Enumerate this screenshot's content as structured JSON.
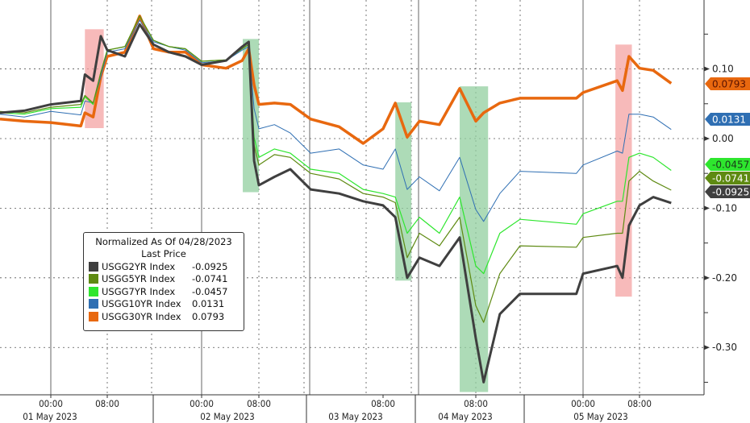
{
  "chart_data": {
    "type": "line",
    "title": "",
    "xlabel": "",
    "ylabel": "",
    "ylim": [
      -0.368,
      0.199
    ],
    "y_ticks": [
      "0.10",
      "0.00",
      "-0.10",
      "-0.20",
      "-0.30"
    ],
    "y_tick_values": [
      0.1,
      0.0,
      -0.1,
      -0.2,
      -0.3
    ],
    "grid": true,
    "y_axis_side": "right",
    "x_tick_labels": [
      {
        "t": "05-01 00:00",
        "label": "00:00"
      },
      {
        "t": "05-01 08:00",
        "label": "08:00"
      },
      {
        "t": "05-02 00:00",
        "label": "00:00"
      },
      {
        "t": "05-02 08:00",
        "label": "08:00"
      },
      {
        "t": "05-03 08:00",
        "label": "08:00"
      },
      {
        "t": "05-04 08:00",
        "label": "08:00"
      },
      {
        "t": "05-05 00:00",
        "label": "00:00"
      },
      {
        "t": "05-05 08:00",
        "label": "08:00"
      }
    ],
    "date_labels": [
      "01 May 2023",
      "02 May 2023",
      "03 May 2023",
      "04 May 2023",
      "05 May 2023"
    ],
    "legend": {
      "title": "Normalized As Of 04/28/2023",
      "subtitle": "Last Price",
      "placement": "bottom-left"
    },
    "x": [
      "04-30 17:00",
      "04-30 20:20",
      "05-01 00:00",
      "05-01 04:15",
      "05-01 04:50",
      "05-01 06:00",
      "05-01 07:05",
      "05-01 08:00",
      "05-01 11:00",
      "05-01 13:30",
      "05-01 15:50",
      "05-01 18:30",
      "05-01 21:15",
      "05-02 00:00",
      "05-02 03:25",
      "05-02 05:40",
      "05-02 06:35",
      "05-02 07:20",
      "05-02 08:00",
      "05-02 11:00",
      "05-02 14:05",
      "05-02 18:00",
      "05-02 23:30",
      "05-03 04:10",
      "05-03 08:00",
      "05-03 11:10",
      "05-03 14:15",
      "05-03 17:25",
      "05-03 22:35",
      "05-04 03:50",
      "05-04 08:00",
      "05-04 09:10",
      "05-04 11:35",
      "05-04 14:35",
      "05-04 23:00",
      "05-05 00:00",
      "05-05 04:50",
      "05-05 05:35",
      "05-05 06:30",
      "05-05 08:00",
      "05-05 09:50",
      "05-05 12:15"
    ],
    "series": [
      {
        "name": "USGG2YR Index",
        "last": "-0.0925",
        "color": "#3f3f3f",
        "tag_text": "#ffffff",
        "values": [
          0.037,
          0.04,
          0.049,
          0.054,
          0.092,
          0.083,
          0.147,
          0.127,
          0.118,
          0.164,
          0.135,
          0.124,
          0.118,
          0.106,
          0.112,
          0.132,
          0.139,
          -0.032,
          -0.067,
          -0.055,
          -0.044,
          -0.073,
          -0.079,
          -0.09,
          -0.096,
          -0.113,
          -0.2,
          -0.171,
          -0.183,
          -0.142,
          -0.287,
          -0.35,
          -0.252,
          -0.223,
          -0.223,
          -0.194,
          -0.183,
          -0.2,
          -0.125,
          -0.096,
          -0.084,
          -0.0925
        ]
      },
      {
        "name": "USGG5YR Index",
        "last": "-0.0741",
        "color": "#5e8a12",
        "tag_text": "#ffffff",
        "values": [
          0.039,
          0.037,
          0.045,
          0.049,
          0.062,
          0.051,
          0.095,
          0.127,
          0.132,
          0.176,
          0.141,
          0.132,
          0.129,
          0.111,
          0.113,
          0.129,
          0.135,
          -0.009,
          -0.038,
          -0.023,
          -0.027,
          -0.05,
          -0.058,
          -0.079,
          -0.084,
          -0.092,
          -0.171,
          -0.136,
          -0.154,
          -0.113,
          -0.24,
          -0.264,
          -0.194,
          -0.154,
          -0.156,
          -0.142,
          -0.136,
          -0.136,
          -0.061,
          -0.047,
          -0.061,
          -0.0741
        ]
      },
      {
        "name": "USGG7YR Index",
        "last": "-0.0457",
        "color": "#2ee62e",
        "tag_text": "#1a3a1a",
        "values": [
          0.037,
          0.035,
          0.043,
          0.045,
          0.06,
          0.049,
          0.095,
          0.127,
          0.132,
          0.176,
          0.141,
          0.132,
          0.129,
          0.111,
          0.113,
          0.129,
          0.135,
          0.002,
          -0.027,
          -0.015,
          -0.021,
          -0.044,
          -0.05,
          -0.073,
          -0.079,
          -0.084,
          -0.136,
          -0.113,
          -0.136,
          -0.084,
          -0.183,
          -0.194,
          -0.136,
          -0.116,
          -0.123,
          -0.108,
          -0.09,
          -0.09,
          -0.027,
          -0.021,
          -0.027,
          -0.0457
        ]
      },
      {
        "name": "USGG10YR Index",
        "last": "0.0131",
        "color": "#2f6fb3",
        "tag_text": "#ffffff",
        "values": [
          0.035,
          0.031,
          0.039,
          0.034,
          0.054,
          0.051,
          0.089,
          0.124,
          0.129,
          0.17,
          0.139,
          0.132,
          0.127,
          0.109,
          0.112,
          0.127,
          0.132,
          0.043,
          0.014,
          0.02,
          0.008,
          -0.021,
          -0.015,
          -0.038,
          -0.044,
          -0.015,
          -0.073,
          -0.055,
          -0.075,
          -0.027,
          -0.102,
          -0.119,
          -0.079,
          -0.047,
          -0.05,
          -0.038,
          -0.018,
          -0.021,
          0.035,
          0.035,
          0.031,
          0.0131
        ]
      },
      {
        "name": "USGG30YR Index",
        "last": "0.0793",
        "color": "#e8680f",
        "tag_text": "#5a1200",
        "values": [
          0.028,
          0.025,
          0.023,
          0.018,
          0.037,
          0.031,
          0.089,
          0.118,
          0.124,
          0.176,
          0.129,
          0.124,
          0.124,
          0.106,
          0.101,
          0.112,
          0.129,
          0.077,
          0.049,
          0.051,
          0.049,
          0.028,
          0.017,
          -0.007,
          0.014,
          0.051,
          0.002,
          0.025,
          0.02,
          0.072,
          0.025,
          0.037,
          0.051,
          0.058,
          0.058,
          0.066,
          0.083,
          0.069,
          0.118,
          0.101,
          0.098,
          0.0793
        ]
      }
    ],
    "highlights": [
      {
        "color": "#f4a3a3",
        "t0": "05-01 04:50",
        "t1": "05-01 07:30",
        "v0": 0.157,
        "v1": 0.015
      },
      {
        "color": "#92cf9f",
        "t0": "05-02 05:45",
        "t1": "05-02 08:00",
        "v0": 0.143,
        "v1": -0.077
      },
      {
        "color": "#92cf9f",
        "t0": "05-03 11:10",
        "t1": "05-03 15:20",
        "v0": 0.052,
        "v1": -0.204
      },
      {
        "color": "#92cf9f",
        "t0": "05-04 03:50",
        "t1": "05-04 09:50",
        "v0": 0.075,
        "v1": -0.364
      },
      {
        "color": "#f4a3a3",
        "t0": "05-05 04:35",
        "t1": "05-05 06:55",
        "v0": 0.135,
        "v1": -0.227
      }
    ]
  }
}
